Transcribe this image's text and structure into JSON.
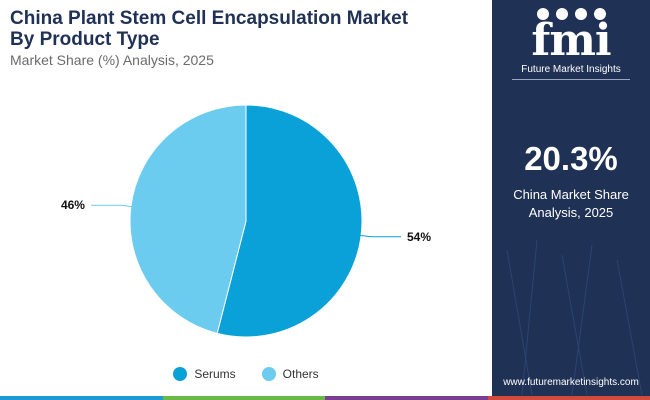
{
  "header": {
    "title_line1": "China Plant Stem Cell Encapsulation Market",
    "title_line2": "By Product Type",
    "subtitle": "Market Share (%) Analysis, 2025"
  },
  "chart_data": {
    "type": "pie",
    "title": "China Plant Stem Cell Encapsulation Market By Product Type",
    "subtitle": "Market Share (%) Analysis, 2025",
    "categories": [
      "Serums",
      "Others"
    ],
    "values": [
      54,
      46
    ],
    "labels": [
      "54%",
      "46%"
    ],
    "colors": [
      "#0aa0d8",
      "#6cccf0"
    ],
    "legend_position": "bottom"
  },
  "side_panel": {
    "logo_mark": "fmi",
    "logo_text": "Future Market Insights",
    "stat_value": "20.3%",
    "stat_label_line1": "China Market Share",
    "stat_label_line2": "Analysis, 2025",
    "website": "www.futuremarketinsights.com",
    "background": "#1f3154"
  },
  "bottom_bar_colors": [
    "#1b9ad6",
    "#6ab845",
    "#7a3f93",
    "#d24a3b"
  ]
}
